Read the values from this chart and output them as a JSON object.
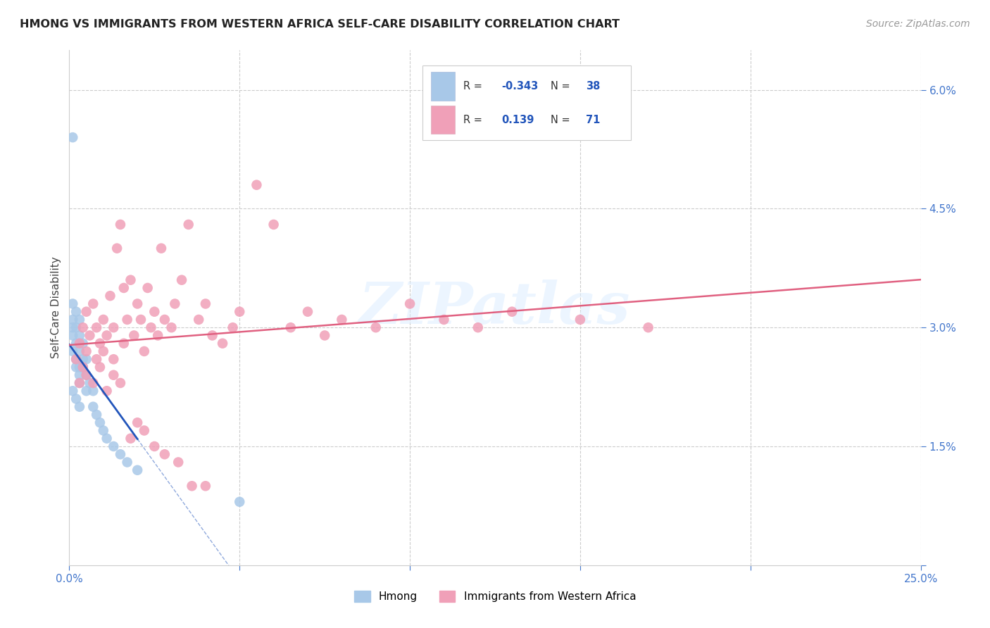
{
  "title": "HMONG VS IMMIGRANTS FROM WESTERN AFRICA SELF-CARE DISABILITY CORRELATION CHART",
  "source": "Source: ZipAtlas.com",
  "ylabel": "Self-Care Disability",
  "xlim": [
    0.0,
    0.25
  ],
  "ylim": [
    0.0,
    0.065
  ],
  "color_hmong": "#a8c8e8",
  "color_africa": "#f0a0b8",
  "color_hmong_line": "#2255bb",
  "color_africa_line": "#e06080",
  "background": "#ffffff",
  "watermark": "ZIPatlas",
  "hmong_x": [
    0.001,
    0.001,
    0.001,
    0.001,
    0.001,
    0.001,
    0.002,
    0.002,
    0.002,
    0.002,
    0.002,
    0.003,
    0.003,
    0.003,
    0.003,
    0.003,
    0.003,
    0.004,
    0.004,
    0.004,
    0.005,
    0.005,
    0.005,
    0.006,
    0.007,
    0.007,
    0.008,
    0.009,
    0.01,
    0.011,
    0.013,
    0.015,
    0.017,
    0.02,
    0.001,
    0.002,
    0.003,
    0.05
  ],
  "hmong_y": [
    0.054,
    0.033,
    0.031,
    0.03,
    0.029,
    0.027,
    0.032,
    0.03,
    0.028,
    0.026,
    0.025,
    0.031,
    0.029,
    0.027,
    0.025,
    0.024,
    0.023,
    0.028,
    0.026,
    0.025,
    0.026,
    0.024,
    0.022,
    0.023,
    0.022,
    0.02,
    0.019,
    0.018,
    0.017,
    0.016,
    0.015,
    0.014,
    0.013,
    0.012,
    0.022,
    0.021,
    0.02,
    0.008
  ],
  "africa_x": [
    0.002,
    0.003,
    0.004,
    0.004,
    0.005,
    0.005,
    0.006,
    0.007,
    0.008,
    0.008,
    0.009,
    0.01,
    0.01,
    0.011,
    0.012,
    0.013,
    0.013,
    0.014,
    0.015,
    0.016,
    0.016,
    0.017,
    0.018,
    0.019,
    0.02,
    0.021,
    0.022,
    0.023,
    0.024,
    0.025,
    0.026,
    0.027,
    0.028,
    0.03,
    0.031,
    0.033,
    0.035,
    0.038,
    0.04,
    0.042,
    0.045,
    0.048,
    0.05,
    0.055,
    0.06,
    0.065,
    0.07,
    0.075,
    0.08,
    0.09,
    0.1,
    0.11,
    0.12,
    0.13,
    0.15,
    0.17,
    0.003,
    0.005,
    0.007,
    0.009,
    0.011,
    0.013,
    0.015,
    0.018,
    0.02,
    0.022,
    0.025,
    0.028,
    0.032,
    0.036,
    0.04
  ],
  "africa_y": [
    0.026,
    0.028,
    0.025,
    0.03,
    0.027,
    0.032,
    0.029,
    0.033,
    0.026,
    0.03,
    0.028,
    0.031,
    0.027,
    0.029,
    0.034,
    0.026,
    0.03,
    0.04,
    0.043,
    0.028,
    0.035,
    0.031,
    0.036,
    0.029,
    0.033,
    0.031,
    0.027,
    0.035,
    0.03,
    0.032,
    0.029,
    0.04,
    0.031,
    0.03,
    0.033,
    0.036,
    0.043,
    0.031,
    0.033,
    0.029,
    0.028,
    0.03,
    0.032,
    0.048,
    0.043,
    0.03,
    0.032,
    0.029,
    0.031,
    0.03,
    0.033,
    0.031,
    0.03,
    0.032,
    0.031,
    0.03,
    0.023,
    0.024,
    0.023,
    0.025,
    0.022,
    0.024,
    0.023,
    0.016,
    0.018,
    0.017,
    0.015,
    0.014,
    0.013,
    0.01,
    0.01
  ]
}
